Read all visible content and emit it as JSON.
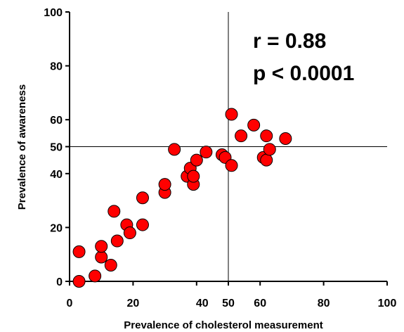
{
  "chart_data": {
    "type": "scatter",
    "title": "",
    "xlabel": "Prevalence of cholesterol measurement",
    "ylabel": "Prevalence of awareness",
    "xlim": [
      0,
      100
    ],
    "ylim": [
      0,
      100
    ],
    "x_ticks": [
      0,
      20,
      40,
      50,
      60,
      80,
      100
    ],
    "y_ticks": [
      0,
      20,
      40,
      50,
      60,
      80,
      100
    ],
    "x_tick_labels": [
      "0",
      "20",
      "40",
      "50",
      "60",
      "80",
      "100"
    ],
    "y_tick_labels": [
      "0",
      "20",
      "40",
      "50",
      "60",
      "80",
      "100"
    ],
    "reference_lines": {
      "x": 50,
      "y": 50
    },
    "annotations": [
      "r = 0.88",
      "p < 0.0001"
    ],
    "marker_color": "#ff0000",
    "marker_edge_color": "#000000",
    "grid": false,
    "points": [
      {
        "x": 3,
        "y": 0
      },
      {
        "x": 3,
        "y": 11
      },
      {
        "x": 8,
        "y": 2
      },
      {
        "x": 10,
        "y": 9
      },
      {
        "x": 10,
        "y": 13
      },
      {
        "x": 13,
        "y": 6
      },
      {
        "x": 14,
        "y": 26
      },
      {
        "x": 15,
        "y": 15
      },
      {
        "x": 18,
        "y": 21
      },
      {
        "x": 19,
        "y": 18
      },
      {
        "x": 23,
        "y": 21
      },
      {
        "x": 23,
        "y": 31
      },
      {
        "x": 30,
        "y": 33
      },
      {
        "x": 30,
        "y": 36
      },
      {
        "x": 33,
        "y": 49
      },
      {
        "x": 37,
        "y": 39
      },
      {
        "x": 38,
        "y": 42
      },
      {
        "x": 39,
        "y": 36
      },
      {
        "x": 39,
        "y": 39
      },
      {
        "x": 40,
        "y": 45
      },
      {
        "x": 43,
        "y": 48
      },
      {
        "x": 48,
        "y": 47
      },
      {
        "x": 49,
        "y": 46
      },
      {
        "x": 51,
        "y": 43
      },
      {
        "x": 51,
        "y": 62
      },
      {
        "x": 54,
        "y": 54
      },
      {
        "x": 58,
        "y": 58
      },
      {
        "x": 61,
        "y": 46
      },
      {
        "x": 62,
        "y": 45
      },
      {
        "x": 62,
        "y": 54
      },
      {
        "x": 63,
        "y": 49
      },
      {
        "x": 68,
        "y": 53
      }
    ]
  }
}
